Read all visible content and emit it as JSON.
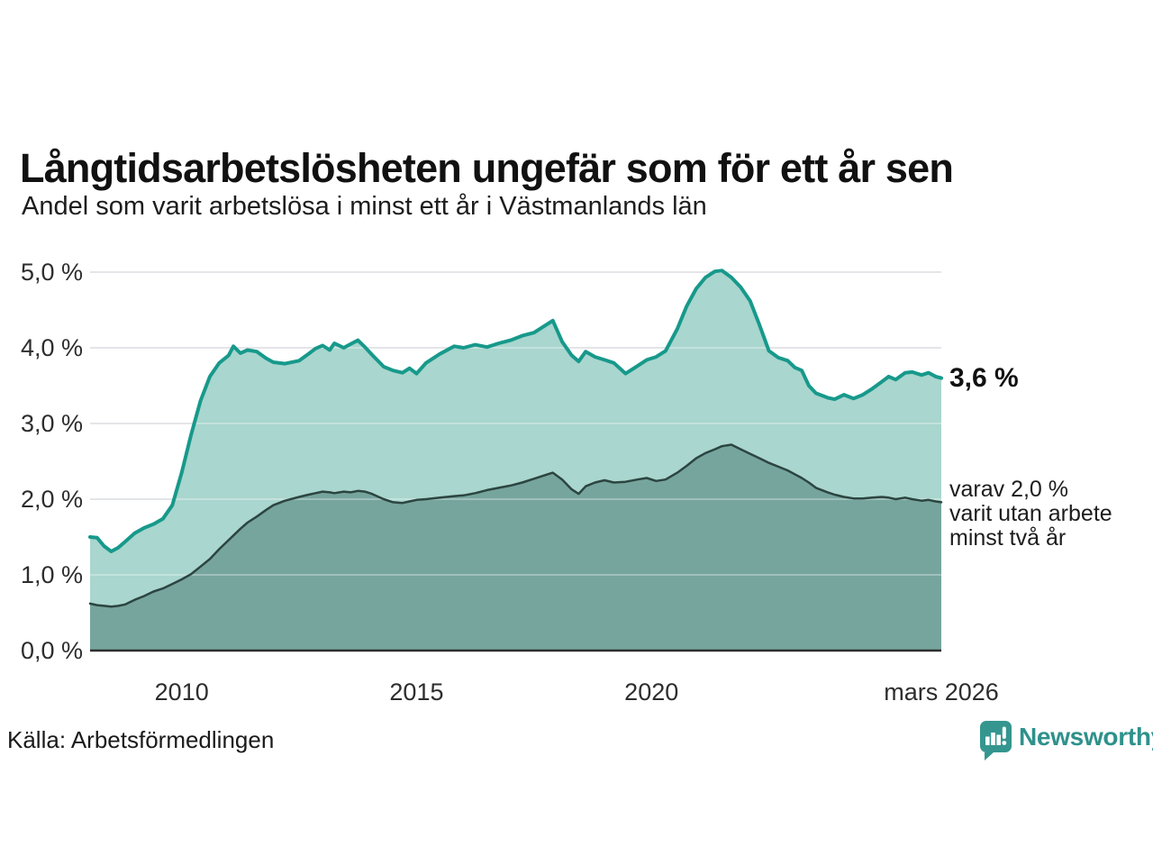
{
  "header": {
    "title": "Långtidsarbetslösheten ungefär som för ett år sen",
    "subtitle": "Andel som varit arbetslösa i minst ett år i Västmanlands län"
  },
  "annotations": {
    "latest_value": "3,6 %",
    "secondary": {
      "lines": [
        "varav 2,0 %",
        "varit utan arbete",
        "minst två år"
      ]
    }
  },
  "footer": {
    "source": "Källa: Arbetsförmedlingen",
    "brand": "Newsworthy"
  },
  "colors": {
    "accent_teal": "#17998b",
    "light_fill": "#a9d6ce",
    "dark_fill": "#76a59e",
    "dark_line": "#2c4540",
    "gridline": "#d9dade",
    "axis_line": "#2e2e2e",
    "tick_text": "#2d2d2d",
    "brand_teal": "#2e918b"
  },
  "chart_data": {
    "type": "area",
    "title": "Långtidsarbetslösheten ungefär som för ett år sen",
    "subtitle": "Andel som varit arbetslösa i minst ett år i Västmanlands län",
    "xlabel": "",
    "ylabel": "",
    "grid": true,
    "legend_position": "direct-labels-right",
    "xlim": [
      2008.05,
      2026.17
    ],
    "ylim": [
      0,
      5.0
    ],
    "yticks": [
      {
        "value": 0.0,
        "label": "0,0 %"
      },
      {
        "value": 1.0,
        "label": "1,0 %"
      },
      {
        "value": 2.0,
        "label": "2,0 %"
      },
      {
        "value": 3.0,
        "label": "3,0 %"
      },
      {
        "value": 4.0,
        "label": "4,0 %"
      },
      {
        "value": 5.0,
        "label": "5,0 %"
      }
    ],
    "xticks": [
      {
        "value": 2010,
        "label": "2010"
      },
      {
        "value": 2015,
        "label": "2015"
      },
      {
        "value": 2020,
        "label": "2020"
      },
      {
        "value": 2026.17,
        "label": "mars 2026"
      }
    ],
    "x": [
      2008.05,
      2008.2,
      2008.35,
      2008.5,
      2008.65,
      2008.8,
      2009.0,
      2009.2,
      2009.4,
      2009.6,
      2009.8,
      2010.0,
      2010.2,
      2010.4,
      2010.6,
      2010.8,
      2011.0,
      2011.1,
      2011.25,
      2011.4,
      2011.6,
      2011.8,
      2011.95,
      2012.2,
      2012.5,
      2012.7,
      2012.85,
      2013.0,
      2013.15,
      2013.25,
      2013.45,
      2013.6,
      2013.75,
      2013.9,
      2014.05,
      2014.3,
      2014.5,
      2014.7,
      2014.85,
      2015.0,
      2015.2,
      2015.5,
      2015.8,
      2016.0,
      2016.25,
      2016.5,
      2016.75,
      2017.0,
      2017.25,
      2017.5,
      2017.75,
      2017.9,
      2018.1,
      2018.3,
      2018.45,
      2018.6,
      2018.8,
      2019.0,
      2019.2,
      2019.45,
      2019.7,
      2019.9,
      2020.1,
      2020.3,
      2020.55,
      2020.75,
      2020.95,
      2021.15,
      2021.35,
      2021.5,
      2021.7,
      2021.9,
      2022.1,
      2022.3,
      2022.5,
      2022.7,
      2022.9,
      2023.05,
      2023.2,
      2023.35,
      2023.5,
      2023.75,
      2023.9,
      2024.1,
      2024.3,
      2024.5,
      2024.7,
      2024.9,
      2025.05,
      2025.2,
      2025.4,
      2025.55,
      2025.75,
      2025.9,
      2026.05,
      2026.17
    ],
    "series": [
      {
        "name": "Andel som varit arbetslösa i minst ett år",
        "line_color": "#17998b",
        "fill_color": "#a9d6ce",
        "end_label": "3,6 %",
        "values": [
          1.5,
          1.49,
          1.38,
          1.31,
          1.36,
          1.44,
          1.55,
          1.62,
          1.67,
          1.74,
          1.92,
          2.35,
          2.85,
          3.3,
          3.62,
          3.8,
          3.9,
          4.02,
          3.93,
          3.97,
          3.95,
          3.86,
          3.81,
          3.79,
          3.83,
          3.92,
          3.99,
          4.03,
          3.97,
          4.06,
          4.0,
          4.05,
          4.1,
          4.01,
          3.91,
          3.75,
          3.7,
          3.67,
          3.73,
          3.66,
          3.8,
          3.92,
          4.02,
          4.0,
          4.04,
          4.01,
          4.06,
          4.1,
          4.16,
          4.2,
          4.3,
          4.36,
          4.08,
          3.9,
          3.82,
          3.95,
          3.88,
          3.84,
          3.8,
          3.66,
          3.76,
          3.84,
          3.88,
          3.96,
          4.25,
          4.55,
          4.78,
          4.93,
          5.01,
          5.02,
          4.93,
          4.8,
          4.62,
          4.3,
          3.96,
          3.87,
          3.83,
          3.74,
          3.7,
          3.5,
          3.4,
          3.34,
          3.32,
          3.38,
          3.33,
          3.38,
          3.46,
          3.55,
          3.62,
          3.58,
          3.67,
          3.68,
          3.64,
          3.67,
          3.62,
          3.6
        ]
      },
      {
        "name": "varav utan arbete minst två år",
        "line_color": "#2c4540",
        "fill_color": "#76a59e",
        "end_label": "varav 2,0 % varit utan arbete minst två år",
        "values": [
          0.62,
          0.6,
          0.59,
          0.58,
          0.59,
          0.61,
          0.67,
          0.72,
          0.78,
          0.82,
          0.88,
          0.94,
          1.01,
          1.11,
          1.21,
          1.34,
          1.46,
          1.52,
          1.61,
          1.69,
          1.77,
          1.86,
          1.92,
          1.98,
          2.03,
          2.06,
          2.08,
          2.1,
          2.09,
          2.08,
          2.1,
          2.09,
          2.11,
          2.1,
          2.07,
          2.0,
          1.96,
          1.95,
          1.97,
          1.99,
          2.0,
          2.02,
          2.04,
          2.05,
          2.08,
          2.12,
          2.15,
          2.18,
          2.22,
          2.27,
          2.32,
          2.35,
          2.26,
          2.13,
          2.07,
          2.17,
          2.22,
          2.25,
          2.22,
          2.23,
          2.26,
          2.28,
          2.24,
          2.26,
          2.35,
          2.44,
          2.54,
          2.61,
          2.66,
          2.7,
          2.72,
          2.66,
          2.6,
          2.54,
          2.48,
          2.43,
          2.38,
          2.33,
          2.28,
          2.22,
          2.15,
          2.09,
          2.06,
          2.03,
          2.01,
          2.01,
          2.02,
          2.03,
          2.02,
          2.0,
          2.02,
          2.0,
          1.98,
          1.99,
          1.97,
          1.96
        ]
      }
    ]
  }
}
